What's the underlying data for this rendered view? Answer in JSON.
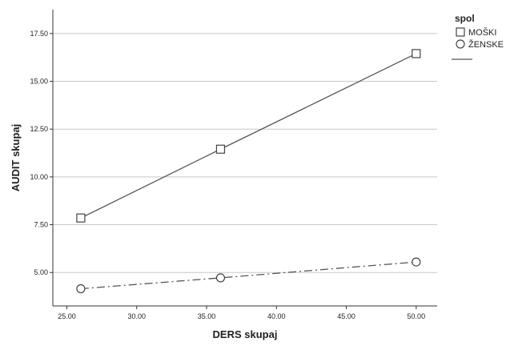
{
  "chart_data": {
    "type": "line",
    "xlabel": "DERS skupaj",
    "ylabel": "AUDIT skupaj",
    "xlim": [
      24.0,
      51.5
    ],
    "ylim": [
      3.25,
      18.75
    ],
    "x_ticks": [
      "25.00",
      "30.00",
      "35.00",
      "40.00",
      "45.00",
      "50.00"
    ],
    "y_ticks": [
      "5.00",
      "7.50",
      "10.00",
      "12.50",
      "15.00",
      "17.50"
    ],
    "grid": "horizontal",
    "legend": {
      "title": "spol",
      "position": "top-right"
    },
    "series": [
      {
        "name": "MOŠKI",
        "marker": "square",
        "line_style": "solid",
        "color": "#555555",
        "points": [
          {
            "x": 26.0,
            "y": 7.85
          },
          {
            "x": 36.0,
            "y": 11.45
          },
          {
            "x": 50.0,
            "y": 16.45
          }
        ]
      },
      {
        "name": "ŽENSKE",
        "marker": "circle",
        "line_style": "dash-dot",
        "color": "#555555",
        "points": [
          {
            "x": 26.0,
            "y": 4.15
          },
          {
            "x": 36.0,
            "y": 4.72
          },
          {
            "x": 50.0,
            "y": 5.55
          }
        ]
      }
    ]
  }
}
